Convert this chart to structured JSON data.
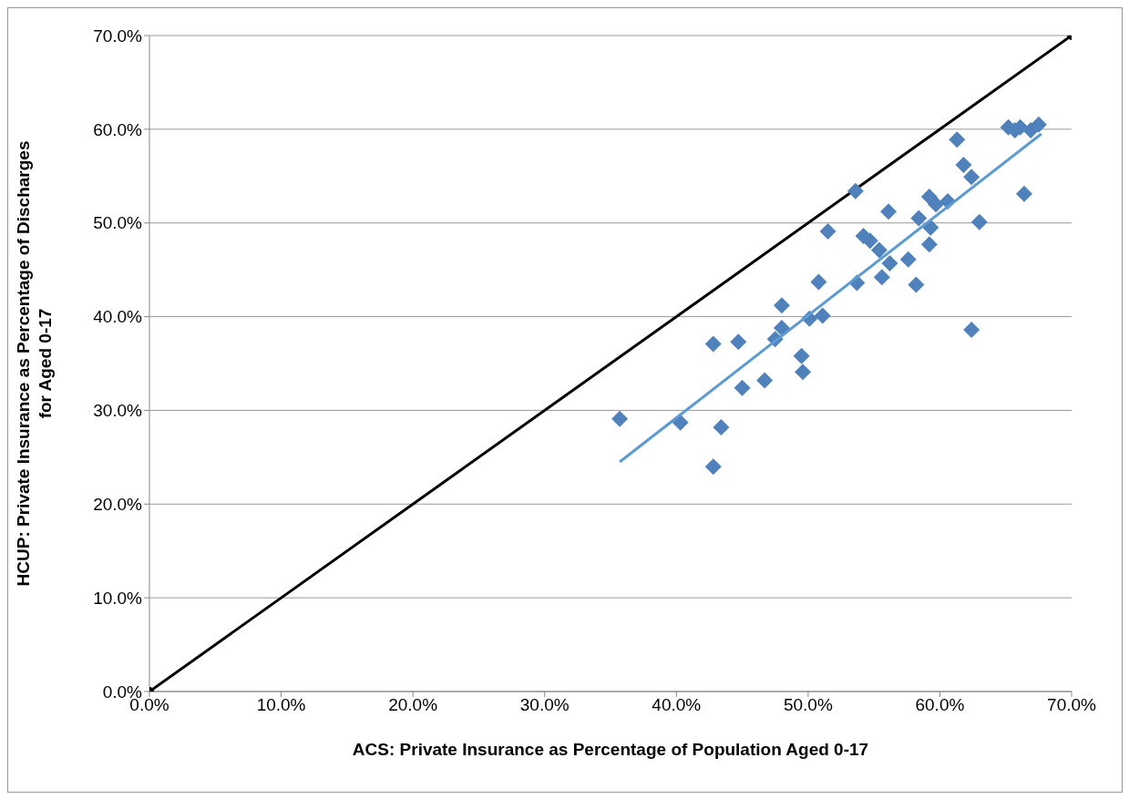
{
  "chart_data": {
    "type": "scatter",
    "xlabel": "ACS: Private Insurance as Percentage of Population Aged 0-17",
    "ylabel": "HCUP: Private Insurance as Percentage of Discharges\nfor Aged 0-17",
    "xlim": [
      0,
      70
    ],
    "ylim": [
      0,
      70
    ],
    "xticks": [
      {
        "value": 0,
        "label": "0.0%"
      },
      {
        "value": 10,
        "label": "10.0%"
      },
      {
        "value": 20,
        "label": "20.0%"
      },
      {
        "value": 30,
        "label": "30.0%"
      },
      {
        "value": 40,
        "label": "40.0%"
      },
      {
        "value": 50,
        "label": "50.0%"
      },
      {
        "value": 60,
        "label": "60.0%"
      },
      {
        "value": 70,
        "label": "70.0%"
      }
    ],
    "yticks": [
      {
        "value": 0,
        "label": "0.0%"
      },
      {
        "value": 10,
        "label": "10.0%"
      },
      {
        "value": 20,
        "label": "20.0%"
      },
      {
        "value": 30,
        "label": "30.0%"
      },
      {
        "value": 40,
        "label": "40.0%"
      },
      {
        "value": 50,
        "label": "50.0%"
      },
      {
        "value": 60,
        "label": "60.0%"
      },
      {
        "value": 70,
        "label": "70.0%"
      }
    ],
    "grid": "y",
    "marker": "diamond",
    "series": [
      {
        "type": "line",
        "color": "#000000",
        "marker": "circle",
        "x": [
          0,
          70
        ],
        "values": [
          0,
          70
        ]
      },
      {
        "color": "#4f81bd",
        "x": [
          35.7,
          40.3,
          43.4,
          42.8,
          45.0,
          46.7,
          49.6,
          49.5,
          42.8,
          44.7,
          47.5,
          48.0,
          48.0,
          50.1,
          51.1,
          50.8,
          53.7,
          58.2,
          55.6,
          56.2,
          57.6,
          55.4,
          59.2,
          59.3,
          54.2,
          54.7,
          51.5,
          58.4,
          63.0,
          56.1,
          59.2,
          59.7,
          60.6,
          53.6,
          61.3,
          61.8,
          62.4,
          66.4,
          62.4,
          65.2,
          65.7,
          66.1,
          66.9,
          67.5
        ],
        "values": [
          29.1,
          28.7,
          28.2,
          24.0,
          32.4,
          33.2,
          34.1,
          35.8,
          37.1,
          37.3,
          37.6,
          38.8,
          41.2,
          39.8,
          40.1,
          43.7,
          43.6,
          43.4,
          44.2,
          45.7,
          46.1,
          47.1,
          47.7,
          49.5,
          48.6,
          48.1,
          49.1,
          50.5,
          50.1,
          51.2,
          52.8,
          52.0,
          52.3,
          53.4,
          58.9,
          56.2,
          54.9,
          53.1,
          38.6,
          60.2,
          59.9,
          60.2,
          59.9,
          60.5
        ]
      },
      {
        "type": "line",
        "color": "#5b9bd5",
        "marker": "none",
        "x": [
          35.7,
          67.7
        ],
        "values": [
          24.5,
          59.5
        ]
      }
    ]
  }
}
